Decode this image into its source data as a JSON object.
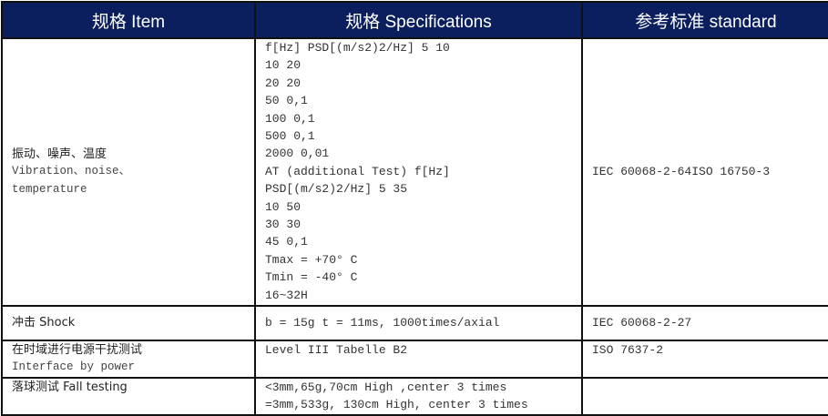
{
  "header": {
    "item": "规格 Item",
    "spec": "规格 Specifications",
    "standard": "参考标准 standard",
    "color": "#0b1f5e"
  },
  "rows": [
    {
      "item_zh": "振动、噪声、温度",
      "item_en": [
        "Vibration、noise、",
        "temperature"
      ],
      "spec": [
        "f[Hz] PSD[(m/s2)2/Hz] 5 10",
        "10 20",
        "20 20",
        "50 0,1",
        "100 0,1",
        "500 0,1",
        "2000 0,01",
        "AT (additional Test) f[Hz]",
        "PSD[(m/s2)2/Hz] 5 35",
        "10 50",
        "30 30",
        "45 0,1",
        "Tmax = +70° C",
        "Tmin = -40° C",
        "16~32H"
      ],
      "standard": "IEC 60068-2-64ISO 16750-3"
    },
    {
      "item_zh": "冲击 Shock",
      "spec": [
        "b = 15g t = 11ms, 1000times/axial"
      ],
      "standard": "IEC 60068-2-27"
    },
    {
      "item_zh": "在时域进行电源干扰测试",
      "item_en": [
        "Interface by power"
      ],
      "spec": [
        "Level III Tabelle B2"
      ],
      "standard": "ISO 7637-2"
    },
    {
      "item_zh": "落球测试 Fall testing",
      "spec": [
        "<3mm,65g,70cm High ,center 3 times",
        "=3mm,533g, 130cm High, center 3 times"
      ],
      "standard": ""
    }
  ]
}
